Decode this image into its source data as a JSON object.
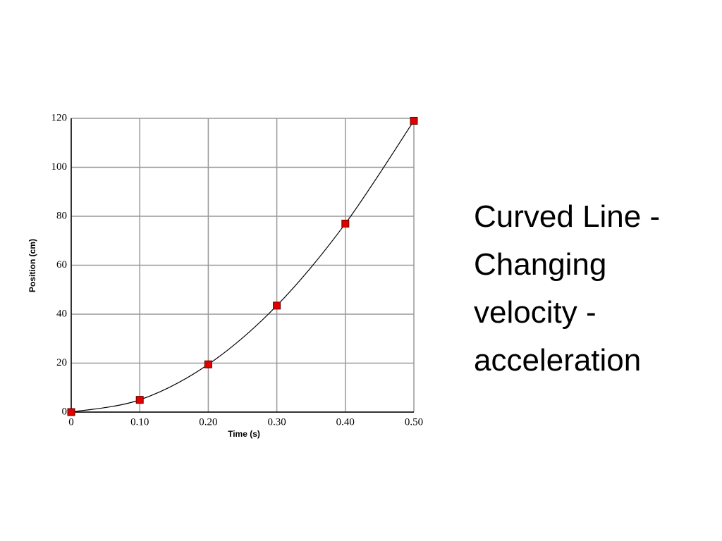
{
  "chart_data": {
    "type": "scatter",
    "x": [
      0,
      0.1,
      0.2,
      0.3,
      0.4,
      0.5
    ],
    "values": [
      0,
      5,
      19.5,
      43.5,
      77,
      119
    ],
    "color": "#e00000",
    "line_color": "#000000",
    "xlabel": "Time (s)",
    "ylabel": "Position (cm)",
    "xlim": [
      0,
      0.5
    ],
    "ylim": [
      0,
      120
    ],
    "xticks": [
      0,
      {
        "value": 0.1,
        "label": "0.10"
      },
      {
        "value": 0.2,
        "label": "0.20"
      },
      {
        "value": 0.3,
        "label": "0.30"
      },
      {
        "value": 0.4,
        "label": "0.40"
      },
      {
        "value": 0.5,
        "label": "0.50"
      }
    ],
    "yticks": [
      0,
      20,
      40,
      60,
      80,
      100,
      120
    ],
    "grid": true
  },
  "caption": [
    "Curved Line -",
    "Changing",
    "velocity -",
    "acceleration"
  ]
}
